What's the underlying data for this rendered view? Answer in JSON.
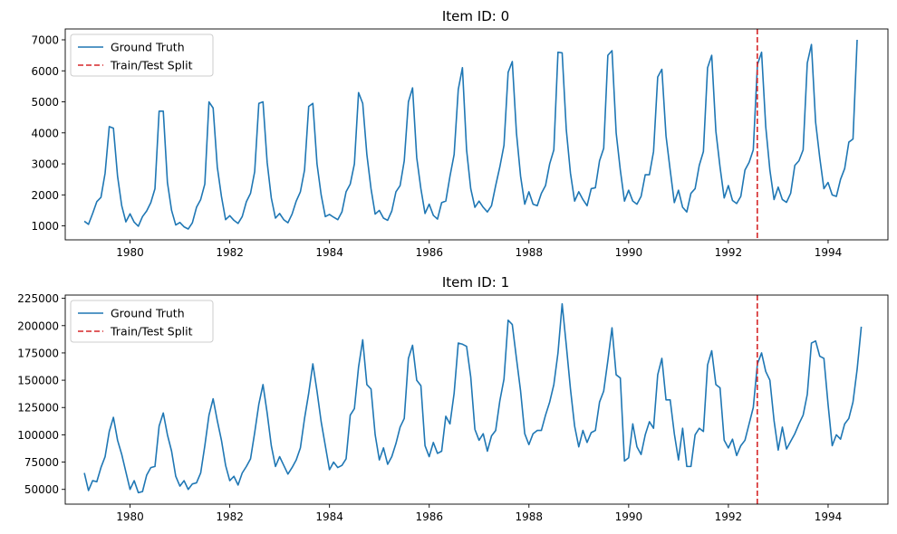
{
  "colors": {
    "ground_truth": "#1f77b4",
    "split": "#d62728",
    "axis": "#000000",
    "background": "#ffffff"
  },
  "chart_data": [
    {
      "type": "line",
      "title": "Item ID: 0",
      "xlabel": "",
      "ylabel": "",
      "xlim": [
        1978.7,
        1995.2
      ],
      "ylim": [
        550,
        7350
      ],
      "x_ticks": [
        1980,
        1982,
        1984,
        1986,
        1988,
        1990,
        1992,
        1994
      ],
      "y_ticks": [
        1000,
        2000,
        3000,
        4000,
        5000,
        6000,
        7000
      ],
      "grid": false,
      "legend": {
        "position": "upper-left",
        "entries": [
          {
            "label": "Ground Truth",
            "style": "solid",
            "color": "#1f77b4"
          },
          {
            "label": "Train/Test Split",
            "style": "dashed",
            "color": "#d62728"
          }
        ]
      },
      "split_x": 1992.58,
      "series": [
        {
          "name": "Ground Truth",
          "start": 1979.083,
          "step": 0.08333,
          "values": [
            1150,
            1050,
            1400,
            1780,
            1920,
            2700,
            4200,
            4150,
            2600,
            1650,
            1130,
            1390,
            1120,
            990,
            1300,
            1480,
            1750,
            2200,
            4700,
            4700,
            2400,
            1500,
            1030,
            1110,
            970,
            900,
            1100,
            1600,
            1850,
            2350,
            5000,
            4800,
            2900,
            1950,
            1200,
            1330,
            1180,
            1080,
            1300,
            1780,
            2050,
            2750,
            4950,
            5000,
            3050,
            1900,
            1250,
            1400,
            1200,
            1100,
            1380,
            1800,
            2100,
            2800,
            4850,
            4950,
            3000,
            2000,
            1300,
            1370,
            1280,
            1200,
            1450,
            2100,
            2350,
            3000,
            5300,
            4950,
            3300,
            2200,
            1380,
            1500,
            1250,
            1180,
            1480,
            2100,
            2300,
            3100,
            5000,
            5450,
            3200,
            2200,
            1400,
            1700,
            1340,
            1220,
            1750,
            1800,
            2600,
            3300,
            5400,
            6100,
            3450,
            2200,
            1600,
            1800,
            1600,
            1450,
            1650,
            2300,
            2900,
            3600,
            5950,
            6300,
            4000,
            2600,
            1700,
            2100,
            1700,
            1650,
            2050,
            2300,
            3000,
            3450,
            6600,
            6580,
            4100,
            2700,
            1800,
            2100,
            1850,
            1650,
            2200,
            2230,
            3100,
            3500,
            6500,
            6650,
            4000,
            2800,
            1800,
            2150,
            1800,
            1700,
            1950,
            2650,
            2650,
            3400,
            5800,
            6050,
            3900,
            2800,
            1750,
            2150,
            1600,
            1450,
            2050,
            2200,
            2950,
            3400,
            6100,
            6500,
            4050,
            2900,
            1900,
            2300,
            1820,
            1720,
            1950,
            2800,
            3050,
            3450,
            6200,
            6600,
            4200,
            2800,
            1850,
            2250,
            1850,
            1760,
            2050,
            2950,
            3100,
            3450,
            6250,
            6850,
            4350,
            3200,
            2200,
            2400,
            2000,
            1950,
            2500,
            2850,
            3700,
            3800,
            7000
          ]
        }
      ]
    },
    {
      "type": "line",
      "title": "Item ID: 1",
      "xlabel": "",
      "ylabel": "",
      "xlim": [
        1978.7,
        1995.2
      ],
      "ylim": [
        36500,
        228000
      ],
      "x_ticks": [
        1980,
        1982,
        1984,
        1986,
        1988,
        1990,
        1992,
        1994
      ],
      "y_ticks": [
        50000,
        75000,
        100000,
        125000,
        150000,
        175000,
        200000,
        225000
      ],
      "grid": false,
      "legend": {
        "position": "upper-left",
        "entries": [
          {
            "label": "Ground Truth",
            "style": "solid",
            "color": "#1f77b4"
          },
          {
            "label": "Train/Test Split",
            "style": "dashed",
            "color": "#d62728"
          }
        ]
      },
      "split_x": 1992.58,
      "series": [
        {
          "name": "Ground Truth",
          "start": 1979.083,
          "step": 0.08333,
          "values": [
            65000,
            49000,
            58000,
            57000,
            70000,
            80000,
            103000,
            116000,
            95000,
            82000,
            66000,
            50000,
            58000,
            47000,
            48000,
            63000,
            70000,
            71000,
            108000,
            120000,
            100000,
            85000,
            62000,
            53000,
            58000,
            50000,
            55000,
            56000,
            65000,
            90000,
            118000,
            133000,
            113000,
            95000,
            72000,
            58000,
            62000,
            54000,
            65000,
            71000,
            78000,
            102000,
            128000,
            146000,
            120000,
            90000,
            71000,
            80000,
            72000,
            64000,
            70000,
            77000,
            88000,
            115000,
            138000,
            165000,
            140000,
            112000,
            90000,
            68000,
            75000,
            70000,
            72000,
            78000,
            118000,
            124000,
            162000,
            187000,
            146000,
            142000,
            100000,
            77000,
            88000,
            73000,
            80000,
            92000,
            107000,
            115000,
            170000,
            182000,
            150000,
            145000,
            90000,
            80000,
            93000,
            83000,
            85000,
            117000,
            110000,
            138000,
            184000,
            183000,
            181000,
            153000,
            105000,
            95000,
            101000,
            85000,
            99000,
            104000,
            131000,
            151000,
            205000,
            201000,
            170000,
            140000,
            101000,
            91000,
            101000,
            104000,
            104000,
            118000,
            130000,
            146000,
            175000,
            220000,
            182000,
            142000,
            108000,
            89000,
            104000,
            93000,
            102000,
            104000,
            130000,
            140000,
            168000,
            198000,
            155000,
            152000,
            76000,
            79000,
            110000,
            89000,
            82000,
            100000,
            112000,
            106000,
            155000,
            170000,
            132000,
            132000,
            101000,
            77000,
            106000,
            71000,
            71000,
            100000,
            106000,
            103000,
            164000,
            177000,
            146000,
            143000,
            95000,
            88000,
            96000,
            81000,
            90000,
            95000,
            110000,
            125000,
            165000,
            175000,
            158000,
            150000,
            113000,
            86000,
            107000,
            87000,
            94000,
            101000,
            110000,
            118000,
            137000,
            184000,
            186000,
            172000,
            170000,
            128000,
            90000,
            100000,
            96000,
            110000,
            115000,
            130000,
            160000,
            199000
          ]
        }
      ]
    }
  ]
}
